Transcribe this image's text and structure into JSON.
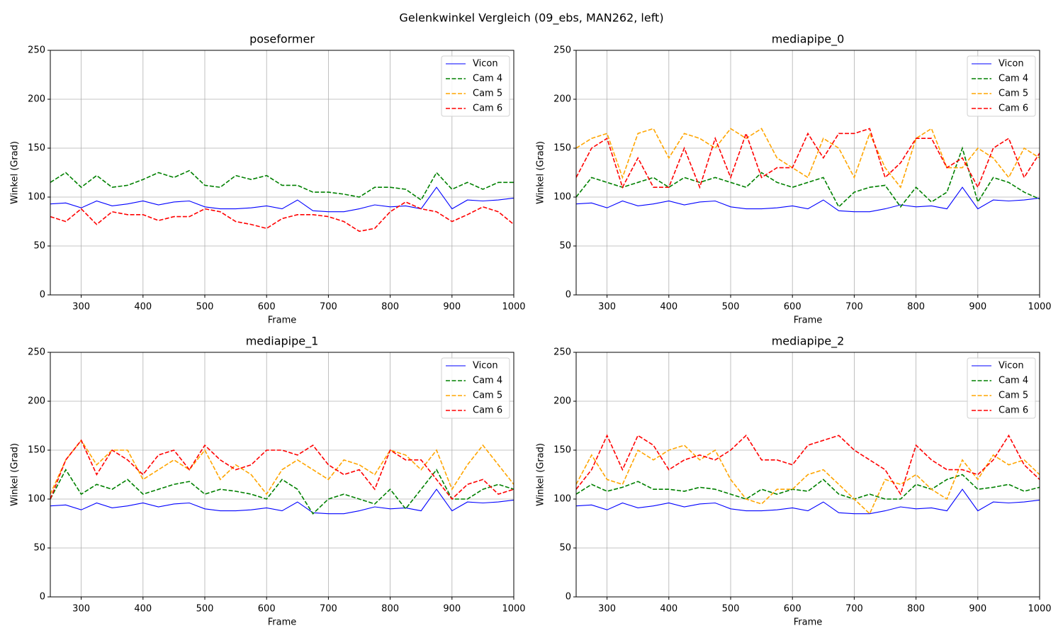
{
  "title": "Gelenkwinkel Vergleich (09_ebs, MAN262, left)",
  "chart_data": [
    {
      "type": "line",
      "title": "poseformer",
      "xlabel": "Frame",
      "ylabel": "Winkel (Grad)",
      "x": [
        250,
        275,
        300,
        325,
        350,
        375,
        400,
        425,
        450,
        475,
        500,
        525,
        550,
        575,
        600,
        625,
        650,
        675,
        700,
        725,
        750,
        775,
        800,
        825,
        850,
        875,
        900,
        925,
        950,
        975,
        1000
      ],
      "series": [
        {
          "name": "Vicon",
          "color": "#0000ff",
          "dashed": false,
          "values": [
            93,
            94,
            89,
            96,
            91,
            93,
            96,
            92,
            95,
            96,
            90,
            88,
            88,
            89,
            91,
            88,
            97,
            86,
            85,
            85,
            88,
            92,
            90,
            91,
            88,
            110,
            88,
            97,
            96,
            97,
            99
          ]
        },
        {
          "name": "Cam 4",
          "color": "#008000",
          "dashed": true,
          "values": [
            115,
            125,
            110,
            122,
            110,
            112,
            118,
            125,
            120,
            127,
            112,
            110,
            122,
            118,
            122,
            112,
            112,
            105,
            105,
            103,
            100,
            110,
            110,
            108,
            97,
            125,
            108,
            115,
            108,
            115,
            115
          ]
        },
        {
          "name": "Cam 5",
          "color": "#ffa500",
          "dashed": true,
          "values": [
            null,
            null,
            null,
            null,
            null,
            null,
            null,
            null,
            null,
            null,
            null,
            null,
            null,
            null,
            null,
            null,
            null,
            null,
            null,
            null,
            null,
            null,
            null,
            null,
            null,
            null,
            null,
            null,
            null,
            null,
            null
          ]
        },
        {
          "name": "Cam 6",
          "color": "#ff0000",
          "dashed": true,
          "values": [
            80,
            75,
            88,
            72,
            85,
            82,
            82,
            76,
            80,
            80,
            88,
            85,
            75,
            72,
            68,
            78,
            82,
            82,
            80,
            75,
            65,
            68,
            85,
            95,
            88,
            85,
            75,
            82,
            90,
            85,
            72
          ]
        }
      ],
      "xlim": [
        250,
        1000
      ],
      "xticks": [
        300,
        400,
        500,
        600,
        700,
        800,
        900,
        1000
      ],
      "ylim": [
        0,
        250
      ],
      "yticks": [
        0,
        50,
        100,
        150,
        200,
        250
      ],
      "grid": true,
      "legend": "upper right"
    },
    {
      "type": "line",
      "title": "mediapipe_0",
      "xlabel": "Frame",
      "ylabel": "Winkel (Grad)",
      "x": [
        250,
        275,
        300,
        325,
        350,
        375,
        400,
        425,
        450,
        475,
        500,
        525,
        550,
        575,
        600,
        625,
        650,
        675,
        700,
        725,
        750,
        775,
        800,
        825,
        850,
        875,
        900,
        925,
        950,
        975,
        1000
      ],
      "series": [
        {
          "name": "Vicon",
          "color": "#0000ff",
          "dashed": false,
          "values": [
            93,
            94,
            89,
            96,
            91,
            93,
            96,
            92,
            95,
            96,
            90,
            88,
            88,
            89,
            91,
            88,
            97,
            86,
            85,
            85,
            88,
            92,
            90,
            91,
            88,
            110,
            88,
            97,
            96,
            97,
            99
          ]
        },
        {
          "name": "Cam 4",
          "color": "#008000",
          "dashed": true,
          "values": [
            100,
            120,
            115,
            110,
            115,
            120,
            110,
            120,
            115,
            120,
            115,
            110,
            125,
            115,
            110,
            115,
            120,
            90,
            105,
            110,
            112,
            90,
            110,
            95,
            105,
            150,
            95,
            120,
            115,
            105,
            98
          ]
        },
        {
          "name": "Cam 5",
          "color": "#ffa500",
          "dashed": true,
          "values": [
            150,
            160,
            165,
            120,
            165,
            170,
            140,
            165,
            160,
            150,
            170,
            160,
            170,
            140,
            130,
            120,
            160,
            150,
            120,
            165,
            130,
            110,
            160,
            170,
            130,
            130,
            150,
            140,
            120,
            150,
            140
          ]
        },
        {
          "name": "Cam 6",
          "color": "#ff0000",
          "dashed": true,
          "values": [
            120,
            150,
            160,
            110,
            140,
            110,
            110,
            150,
            110,
            160,
            120,
            165,
            120,
            130,
            130,
            165,
            140,
            165,
            165,
            170,
            120,
            135,
            160,
            160,
            130,
            140,
            110,
            150,
            160,
            120,
            145
          ]
        }
      ],
      "xlim": [
        250,
        1000
      ],
      "xticks": [
        300,
        400,
        500,
        600,
        700,
        800,
        900,
        1000
      ],
      "ylim": [
        0,
        250
      ],
      "yticks": [
        0,
        50,
        100,
        150,
        200,
        250
      ],
      "grid": true,
      "legend": "upper right"
    },
    {
      "type": "line",
      "title": "mediapipe_1",
      "xlabel": "Frame",
      "ylabel": "Winkel (Grad)",
      "x": [
        250,
        275,
        300,
        325,
        350,
        375,
        400,
        425,
        450,
        475,
        500,
        525,
        550,
        575,
        600,
        625,
        650,
        675,
        700,
        725,
        750,
        775,
        800,
        825,
        850,
        875,
        900,
        925,
        950,
        975,
        1000
      ],
      "series": [
        {
          "name": "Vicon",
          "color": "#0000ff",
          "dashed": false,
          "values": [
            93,
            94,
            89,
            96,
            91,
            93,
            96,
            92,
            95,
            96,
            90,
            88,
            88,
            89,
            91,
            88,
            97,
            86,
            85,
            85,
            88,
            92,
            90,
            91,
            88,
            110,
            88,
            97,
            96,
            97,
            99
          ]
        },
        {
          "name": "Cam 4",
          "color": "#008000",
          "dashed": true,
          "values": [
            100,
            130,
            105,
            115,
            110,
            120,
            105,
            110,
            115,
            118,
            105,
            110,
            108,
            105,
            100,
            120,
            110,
            85,
            100,
            105,
            100,
            95,
            110,
            90,
            110,
            130,
            100,
            100,
            110,
            115,
            110
          ]
        },
        {
          "name": "Cam 5",
          "color": "#ffa500",
          "dashed": true,
          "values": [
            105,
            140,
            160,
            135,
            150,
            150,
            120,
            130,
            140,
            130,
            150,
            120,
            135,
            125,
            105,
            130,
            140,
            130,
            120,
            140,
            135,
            125,
            150,
            145,
            130,
            150,
            110,
            135,
            155,
            135,
            115
          ]
        },
        {
          "name": "Cam 6",
          "color": "#ff0000",
          "dashed": true,
          "values": [
            100,
            140,
            160,
            125,
            150,
            140,
            125,
            145,
            150,
            130,
            155,
            140,
            130,
            135,
            150,
            150,
            145,
            155,
            135,
            125,
            130,
            110,
            150,
            140,
            140,
            120,
            100,
            115,
            120,
            105,
            110
          ]
        }
      ],
      "xlim": [
        250,
        1000
      ],
      "xticks": [
        300,
        400,
        500,
        600,
        700,
        800,
        900,
        1000
      ],
      "ylim": [
        0,
        250
      ],
      "yticks": [
        0,
        50,
        100,
        150,
        200,
        250
      ],
      "grid": true,
      "legend": "upper right"
    },
    {
      "type": "line",
      "title": "mediapipe_2",
      "xlabel": "Frame",
      "ylabel": "Winkel (Grad)",
      "x": [
        250,
        275,
        300,
        325,
        350,
        375,
        400,
        425,
        450,
        475,
        500,
        525,
        550,
        575,
        600,
        625,
        650,
        675,
        700,
        725,
        750,
        775,
        800,
        825,
        850,
        875,
        900,
        925,
        950,
        975,
        1000
      ],
      "series": [
        {
          "name": "Vicon",
          "color": "#0000ff",
          "dashed": false,
          "values": [
            93,
            94,
            89,
            96,
            91,
            93,
            96,
            92,
            95,
            96,
            90,
            88,
            88,
            89,
            91,
            88,
            97,
            86,
            85,
            85,
            88,
            92,
            90,
            91,
            88,
            110,
            88,
            97,
            96,
            97,
            99
          ]
        },
        {
          "name": "Cam 4",
          "color": "#008000",
          "dashed": true,
          "values": [
            105,
            115,
            108,
            112,
            118,
            110,
            110,
            108,
            112,
            110,
            105,
            100,
            110,
            105,
            110,
            108,
            120,
            105,
            100,
            105,
            100,
            100,
            115,
            110,
            120,
            125,
            110,
            112,
            115,
            108,
            112
          ]
        },
        {
          "name": "Cam 5",
          "color": "#ffa500",
          "dashed": true,
          "values": [
            115,
            145,
            120,
            115,
            150,
            140,
            150,
            155,
            140,
            150,
            120,
            100,
            95,
            110,
            110,
            125,
            130,
            115,
            100,
            85,
            120,
            115,
            125,
            110,
            100,
            140,
            120,
            145,
            135,
            140,
            125
          ]
        },
        {
          "name": "Cam 6",
          "color": "#ff0000",
          "dashed": true,
          "values": [
            110,
            130,
            165,
            130,
            165,
            155,
            130,
            140,
            145,
            140,
            150,
            165,
            140,
            140,
            135,
            155,
            160,
            165,
            150,
            140,
            130,
            105,
            155,
            140,
            130,
            130,
            125,
            140,
            165,
            135,
            120
          ]
        }
      ],
      "xlim": [
        250,
        1000
      ],
      "xticks": [
        300,
        400,
        500,
        600,
        700,
        800,
        900,
        1000
      ],
      "ylim": [
        0,
        250
      ],
      "yticks": [
        0,
        50,
        100,
        150,
        200,
        250
      ],
      "grid": true,
      "legend": "upper right"
    }
  ]
}
